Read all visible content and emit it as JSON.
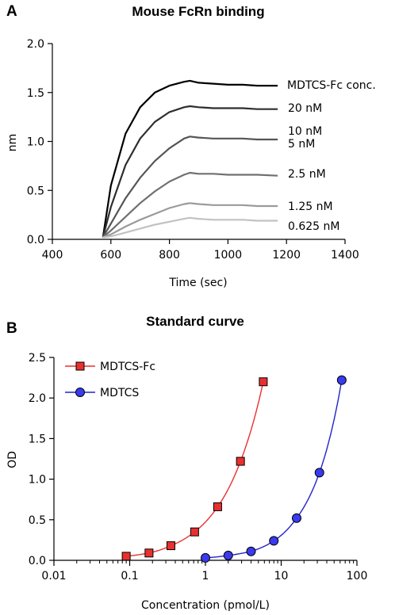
{
  "chart_data": [
    {
      "panel": "A",
      "type": "line",
      "title": "Mouse FcRn binding",
      "xlabel": "Time (sec)",
      "ylabel": "nm",
      "xlim": [
        400,
        1400
      ],
      "ylim": [
        0,
        2.0
      ],
      "xticks": [
        "400",
        "600",
        "800",
        "1000",
        "1200",
        "1400"
      ],
      "yticks": [
        "0.0",
        "0.5",
        "1.0",
        "1.5",
        "2.0"
      ],
      "legend_title": "MDTCS-Fc conc.",
      "grid": false,
      "series": [
        {
          "name": "20 nM",
          "color": "#000000",
          "x": [
            573,
            600,
            650,
            700,
            750,
            800,
            850,
            870,
            900,
            950,
            1000,
            1050,
            1100,
            1170
          ],
          "y": [
            0.02,
            0.55,
            1.08,
            1.35,
            1.5,
            1.57,
            1.61,
            1.62,
            1.6,
            1.59,
            1.58,
            1.58,
            1.57,
            1.57
          ]
        },
        {
          "name": "10 nM",
          "color": "#2e2e2e",
          "x": [
            573,
            600,
            650,
            700,
            750,
            800,
            850,
            870,
            900,
            950,
            1000,
            1050,
            1100,
            1170
          ],
          "y": [
            0.02,
            0.33,
            0.76,
            1.03,
            1.2,
            1.3,
            1.35,
            1.36,
            1.35,
            1.34,
            1.34,
            1.34,
            1.33,
            1.33
          ]
        },
        {
          "name": "5 nM",
          "color": "#555555",
          "x": [
            573,
            600,
            650,
            700,
            750,
            800,
            850,
            870,
            900,
            950,
            1000,
            1050,
            1100,
            1170
          ],
          "y": [
            0.02,
            0.16,
            0.42,
            0.63,
            0.8,
            0.93,
            1.03,
            1.05,
            1.04,
            1.03,
            1.03,
            1.03,
            1.02,
            1.02
          ]
        },
        {
          "name": "2.5 nM",
          "color": "#707070",
          "x": [
            573,
            600,
            650,
            700,
            750,
            800,
            850,
            870,
            900,
            950,
            1000,
            1050,
            1100,
            1170
          ],
          "y": [
            0.02,
            0.09,
            0.23,
            0.37,
            0.49,
            0.59,
            0.66,
            0.68,
            0.67,
            0.67,
            0.66,
            0.66,
            0.66,
            0.65
          ]
        },
        {
          "name": "1.25 nM",
          "color": "#9a9a9a",
          "x": [
            573,
            600,
            650,
            700,
            750,
            800,
            850,
            870,
            900,
            950,
            1000,
            1050,
            1100,
            1170
          ],
          "y": [
            0.02,
            0.05,
            0.13,
            0.2,
            0.26,
            0.32,
            0.36,
            0.37,
            0.36,
            0.35,
            0.35,
            0.35,
            0.34,
            0.34
          ]
        },
        {
          "name": "0.625 nM",
          "color": "#c2c2c2",
          "x": [
            573,
            600,
            650,
            700,
            750,
            800,
            850,
            870,
            900,
            950,
            1000,
            1050,
            1100,
            1170
          ],
          "y": [
            0.02,
            0.03,
            0.07,
            0.11,
            0.15,
            0.18,
            0.21,
            0.22,
            0.21,
            0.2,
            0.2,
            0.2,
            0.19,
            0.19
          ]
        }
      ]
    },
    {
      "panel": "B",
      "type": "scatter",
      "title": "Standard curve",
      "xlabel": "Concentration (pmol/L)",
      "ylabel": "OD",
      "xscale": "log",
      "xlim": [
        0.01,
        100
      ],
      "ylim": [
        0,
        2.5
      ],
      "xticks": [
        "0.01",
        "0.1",
        "1",
        "10",
        "100"
      ],
      "yticks": [
        "0.0",
        "0.5",
        "1.0",
        "1.5",
        "2.0",
        "2.5"
      ],
      "legend_position": "top-left",
      "grid": false,
      "series": [
        {
          "name": "MDTCS-Fc",
          "marker": "square",
          "color": "#e8312f",
          "line_color": "#e8312f",
          "x": [
            0.09,
            0.18,
            0.35,
            0.72,
            1.45,
            2.9,
            5.8
          ],
          "y": [
            0.05,
            0.09,
            0.18,
            0.35,
            0.66,
            1.22,
            2.2
          ]
        },
        {
          "name": "MDTCS",
          "marker": "circle",
          "color": "#3a3af0",
          "line_color": "#2222cc",
          "x": [
            1.0,
            2.0,
            4.0,
            8.0,
            16,
            32,
            63
          ],
          "y": [
            0.03,
            0.06,
            0.11,
            0.24,
            0.52,
            1.08,
            2.22
          ]
        }
      ]
    }
  ]
}
